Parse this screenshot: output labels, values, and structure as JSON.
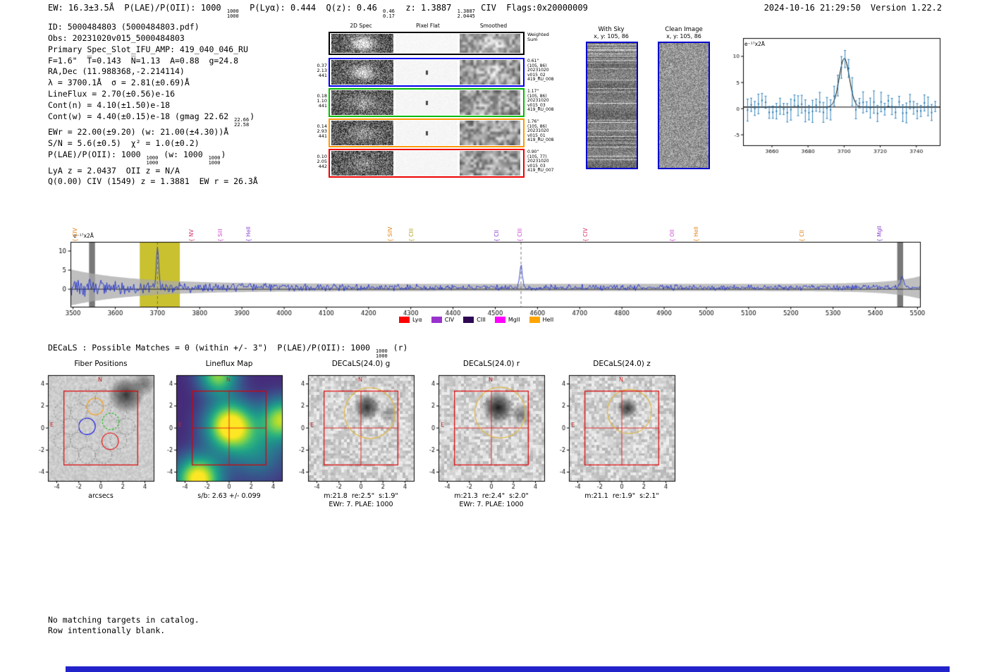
{
  "header": {
    "left_segments": [
      {
        "t": "EW: 16.3±3.5Å  P(LAE)/P(OII): 1000 "
      },
      {
        "frac": [
          "1000",
          "1000"
        ]
      },
      {
        "t": "  P(Lyα): 0.444  Q(z): 0.46 "
      },
      {
        "frac": [
          "0.46",
          "0.17"
        ]
      },
      {
        "t": "  z: 1.3887 "
      },
      {
        "frac": [
          "1.3887",
          "2.0445"
        ]
      },
      {
        "t": " CIV  Flags:0x20000009"
      }
    ],
    "datetime": "2024-10-16 21:29:50",
    "version": "Version 1.22.2"
  },
  "info": {
    "lines": [
      [
        {
          "t": "ID: 5000484803 (5000484803.pdf)"
        }
      ],
      [
        {
          "t": "Obs: 20231020v015_5000484803"
        }
      ],
      [
        {
          "t": "Primary Spec_Slot_IFU_AMP: 419_040_046_RU"
        }
      ],
      [
        {
          "t": "F=1.6\"  T̅=0.143  N̅=1.13  A=0.88  g=24.8"
        }
      ],
      [
        {
          "t": "RA,Dec (11.988368,-2.214114)"
        }
      ],
      [
        {
          "t": "λ = 3700.1Å  σ = 2.81(±0.69)Å"
        }
      ],
      [
        {
          "t": "LineFlux = 2.70(±0.56)e-16"
        }
      ],
      [
        {
          "t": "Cont(n) = 4.10(±1.50)e-18"
        }
      ],
      [
        {
          "t": "Cont(w) = 4.40(±0.15)e-18 (gmag 22.62 "
        },
        {
          "frac": [
            "22.66",
            "22.58"
          ]
        },
        {
          "t": ")"
        }
      ],
      [
        {
          "t": "EWr = 22.00(±9.20) (w: 21.00(±4.30))Å"
        }
      ],
      [
        {
          "t": "S/N = 5.6(±0.5)  χ² = 1.0(±0.2)"
        }
      ],
      [
        {
          "t": "P(LAE)/P(OII): 1000 "
        },
        {
          "frac": [
            "1000",
            "1000"
          ]
        },
        {
          "t": " (w: 1000 "
        },
        {
          "frac": [
            "1000",
            "1000"
          ]
        },
        {
          "t": ")"
        }
      ],
      [
        {
          "t": "LyA z = 2.0437  OII z = N/A"
        }
      ],
      [
        {
          "t": "Q(0.00) CIV (1549) z = 1.3881  EW r = 26.3Å"
        }
      ]
    ]
  },
  "spec2d": {
    "col_headers": [
      "2D Spec",
      "Pixel Flat",
      "Smoothed"
    ],
    "weighted_sum": "Weighted Sum",
    "rows": [
      {
        "left": [
          "0.37",
          "2.13",
          "441"
        ],
        "color": "#0000ee",
        "streak": 120,
        "right": [
          "0.61\"",
          "(105, 86)",
          "20231020",
          "v015_02",
          "419_RU_008"
        ]
      },
      {
        "left": [
          "0.18",
          "1.10",
          "441"
        ],
        "color": "#00bb00",
        "streak": 70,
        "right": [
          "1.17\"",
          "(105, 86)",
          "20231020",
          "v015_03",
          "419_RU_008"
        ]
      },
      {
        "left": [
          "0.14",
          "2.93",
          "441"
        ],
        "color": "#ff9900",
        "streak": 55,
        "right": [
          "1.76\"",
          "(105, 86)",
          "20231020",
          "v015_01",
          "419_RU_008"
        ]
      },
      {
        "left": [
          "0.10",
          "2.05",
          "442"
        ],
        "color": "#ee0000",
        "streak": 45,
        "right": [
          "0.90\"",
          "(105, 77)",
          "20231020",
          "v015_03",
          "419_RU_007"
        ]
      }
    ]
  },
  "with_sky": {
    "title": "With Sky",
    "coords": "x, y: 105, 86"
  },
  "clean_image": {
    "title": "Clean Image",
    "coords": "x, y: 105, 86"
  },
  "decals": {
    "segments": [
      {
        "t": "DECaLS : Possible Matches = 0 (within +/- 3\")  P(LAE)/P(OII): 1000 "
      },
      {
        "frac": [
          "1000",
          "1000"
        ]
      },
      {
        "t": " (r)"
      }
    ]
  },
  "footer": {
    "line1": "No matching targets in catalog.",
    "line2": "Row intentionally blank.",
    "bar_color": "#2323cc"
  },
  "chart_data": [
    {
      "id": "zoomed_spectrum",
      "type": "line",
      "annotation": "e⁻¹⁷x2Å",
      "xlim": [
        3644,
        3753
      ],
      "ylim": [
        -7,
        13.5
      ],
      "x_ticks": [
        3660,
        3680,
        3700,
        3720,
        3740
      ],
      "y_ticks": [
        -5,
        0,
        5,
        10
      ],
      "fit": {
        "center": 3700.1,
        "sigma": 2.81,
        "amplitude": 9.3,
        "continuum": 0.3
      },
      "series_color": "#1f77b4",
      "fit_color": "#000000"
    },
    {
      "id": "full_spectrum",
      "type": "line",
      "annotation": "e⁻¹⁷x2Å",
      "xlim": [
        3494,
        5506
      ],
      "ylim": [
        -4.6,
        12.4
      ],
      "x_ticks": [
        3500,
        3600,
        3700,
        3800,
        3900,
        4000,
        4100,
        4200,
        4300,
        4400,
        4500,
        4600,
        4700,
        4800,
        4900,
        5000,
        5100,
        5200,
        5300,
        5400,
        5500
      ],
      "y_ticks": [
        0,
        5,
        10
      ],
      "continuum": 0.45,
      "spectrum_color": "#2233cc",
      "highlight_band": [
        3658,
        3753
      ],
      "highlight_color": "#c9c12f",
      "masked_bands": [
        [
          3538,
          3552
        ],
        [
          5452,
          5466
        ]
      ],
      "dashed_lines": [
        3700.1,
        4561
      ],
      "peaks": [
        {
          "center": 3700.1,
          "sigma": 2.8,
          "amplitude": 10.2
        },
        {
          "center": 4561,
          "sigma": 3.2,
          "amplitude": 6.0
        },
        {
          "center": 5463,
          "sigma": 3.0,
          "amplitude": 3.0
        }
      ],
      "noise": {
        "base_amp": 0.85,
        "blue_extra": 2.2,
        "blue_scale": 260
      },
      "error_band": {
        "base": 0.95,
        "blue": 3.8,
        "blue_scale": 150,
        "red": 2.0,
        "red_scale": 70
      },
      "line_labels": [
        {
          "label": "CIV",
          "wave": 3505,
          "color": "#e08214"
        },
        {
          "label": "NV",
          "wave": 3782,
          "color": "#d6336c"
        },
        {
          "label": "SiII",
          "wave": 3850,
          "color": "#cc44cc"
        },
        {
          "label": "HeII",
          "wave": 3917,
          "color": "#8844cc"
        },
        {
          "label": "SiIV",
          "wave": 4252,
          "color": "#e08214"
        },
        {
          "label": "CIII",
          "wave": 4302,
          "color": "#b0a122"
        },
        {
          "label": "CII",
          "wave": 4505,
          "color": "#8844cc"
        },
        {
          "label": "CIII",
          "wave": 4560,
          "color": "#cc44cc"
        },
        {
          "label": "CIV",
          "wave": 4715,
          "color": "#d6336c"
        },
        {
          "label": "OII",
          "wave": 4920,
          "color": "#cc44cc"
        },
        {
          "label": "HeII",
          "wave": 4977,
          "color": "#e08214"
        },
        {
          "label": "CII",
          "wave": 5227,
          "color": "#e08214"
        },
        {
          "label": "MgII",
          "wave": 5410,
          "color": "#8844cc"
        }
      ],
      "legend": [
        {
          "label": "Lyα",
          "color": "#ff0000"
        },
        {
          "label": "CIV",
          "color": "#9932cc"
        },
        {
          "label": "CIII",
          "color": "#2e0854"
        },
        {
          "label": "MgII",
          "color": "#ff00ff"
        },
        {
          "label": "HeII",
          "color": "#ffa500"
        }
      ]
    },
    {
      "id": "fiber_positions",
      "type": "scatter",
      "title": "Fiber Positions",
      "caption1": "arcsecs",
      "ticks": [
        -4,
        -2,
        0,
        2,
        4
      ],
      "box": [
        -3.35,
        3.35
      ],
      "compass": {
        "n": "N",
        "e": "E"
      },
      "fiber_radius": 0.75,
      "crosshair": false,
      "seed": 31,
      "fibers": [
        {
          "x": -1.25,
          "y": 0.15,
          "color": "#0000ee",
          "dash": false
        },
        {
          "x": 0.9,
          "y": 0.6,
          "color": "#00bb00",
          "dash": true
        },
        {
          "x": -0.5,
          "y": 1.95,
          "color": "#ff9900",
          "dash": false
        },
        {
          "x": 0.85,
          "y": -1.2,
          "color": "#ee0000",
          "dash": false
        },
        {
          "x": -2.75,
          "y": 0.15,
          "color": "#999999",
          "dash": true
        },
        {
          "x": -2.0,
          "y": 1.45,
          "color": "#999999",
          "dash": true
        },
        {
          "x": -2.0,
          "y": -1.15,
          "color": "#999999",
          "dash": true
        },
        {
          "x": -3.5,
          "y": 1.45,
          "color": "#999999",
          "dash": true
        },
        {
          "x": -3.5,
          "y": -1.15,
          "color": "#999999",
          "dash": true
        },
        {
          "x": -2.75,
          "y": -2.45,
          "color": "#999999",
          "dash": true
        },
        {
          "x": -1.25,
          "y": -2.45,
          "color": "#999999",
          "dash": true
        },
        {
          "x": 0.25,
          "y": -2.45,
          "color": "#999999",
          "dash": true
        },
        {
          "x": -1.25,
          "y": 2.75,
          "color": "#999999",
          "dash": true
        },
        {
          "x": 0.25,
          "y": 2.75,
          "color": "#999999",
          "dash": true
        },
        {
          "x": 1.6,
          "y": -1.15,
          "color": "#999999",
          "dash": true
        },
        {
          "x": 1.6,
          "y": 1.45,
          "color": "#999999",
          "dash": true
        },
        {
          "x": 2.35,
          "y": 0.15,
          "color": "#999999",
          "dash": true
        }
      ],
      "blobs": [
        {
          "x": 2.3,
          "y": 3.0,
          "r": 1.7,
          "a": 0.8
        },
        {
          "x": 3.9,
          "y": 4.0,
          "r": 1.1,
          "a": 0.5
        }
      ]
    },
    {
      "id": "lineflux_map",
      "type": "heatmap",
      "title": "Lineflux Map",
      "caption1": "s/b: 2.63 +/- 0.099",
      "ticks": [
        -4,
        -2,
        0,
        2,
        4
      ],
      "box": [
        -3.35,
        3.35
      ],
      "compass": {
        "n": "N",
        "e": "E"
      },
      "crosshair": true,
      "colormap": "viridis",
      "base": 0.12,
      "blobs": [
        {
          "x": 0.1,
          "y": 0.2,
          "sigma": 1.5,
          "amp": 1.0
        },
        {
          "x": -2.8,
          "y": -4.6,
          "sigma": 1.4,
          "amp": 0.95
        },
        {
          "x": -1.0,
          "y": 4.8,
          "sigma": 1.2,
          "amp": 0.7
        },
        {
          "x": 4.8,
          "y": 0.8,
          "sigma": 1.3,
          "amp": 0.75
        },
        {
          "x": 2.6,
          "y": -2.2,
          "sigma": 1.8,
          "amp": 0.3
        }
      ]
    },
    {
      "id": "decals_g",
      "type": "image",
      "title": "DECaLS(24.0) g",
      "caption1": "m:21.8  re:2.5\"  s:1.9\"",
      "caption2": "EWr: 7. PLAE: 1000",
      "ticks": [
        -4,
        -2,
        0,
        2,
        4
      ],
      "box": [
        -3.35,
        3.35
      ],
      "compass": {
        "n": "N",
        "e": "E"
      },
      "crosshair": true,
      "seed": 11,
      "ellipse": {
        "x": 0.8,
        "y": 1.35,
        "r": 2.3,
        "color": "#e0b84a"
      },
      "blobs": [
        {
          "x": 0.55,
          "y": 1.9,
          "r": 1.25,
          "a": 0.85
        },
        {
          "x": 2.6,
          "y": 1.3,
          "r": 0.9,
          "a": 0.35
        }
      ]
    },
    {
      "id": "decals_r",
      "type": "image",
      "title": "DECaLS(24.0) r",
      "caption1": "m:21.3  re:2.4\"  s:2.0\"",
      "caption2": "EWr: 7. PLAE: 1000",
      "ticks": [
        -4,
        -2,
        0,
        2,
        4
      ],
      "box": [
        -3.35,
        3.35
      ],
      "compass": {
        "n": "N",
        "e": "E"
      },
      "crosshair": true,
      "seed": 12,
      "ellipse": {
        "x": 0.8,
        "y": 1.4,
        "r": 2.3,
        "color": "#e0b84a"
      },
      "blobs": [
        {
          "x": 0.6,
          "y": 1.85,
          "r": 1.5,
          "a": 0.95
        },
        {
          "x": 2.7,
          "y": 1.2,
          "r": 1.0,
          "a": 0.45
        }
      ]
    },
    {
      "id": "decals_z",
      "type": "image",
      "title": "DECaLS(24.0) z",
      "caption1": "m:21.1  re:1.9\"  s:2.1\"",
      "ticks": [
        -4,
        -2,
        0,
        2,
        4
      ],
      "box": [
        -3.35,
        3.35
      ],
      "compass": {
        "n": "N",
        "e": "E"
      },
      "crosshair": true,
      "seed": 13,
      "ellipse": {
        "x": 0.7,
        "y": 1.5,
        "r": 2.0,
        "color": "#e0b84a"
      },
      "blobs": [
        {
          "x": 0.5,
          "y": 1.8,
          "r": 1.0,
          "a": 0.8
        }
      ]
    }
  ]
}
